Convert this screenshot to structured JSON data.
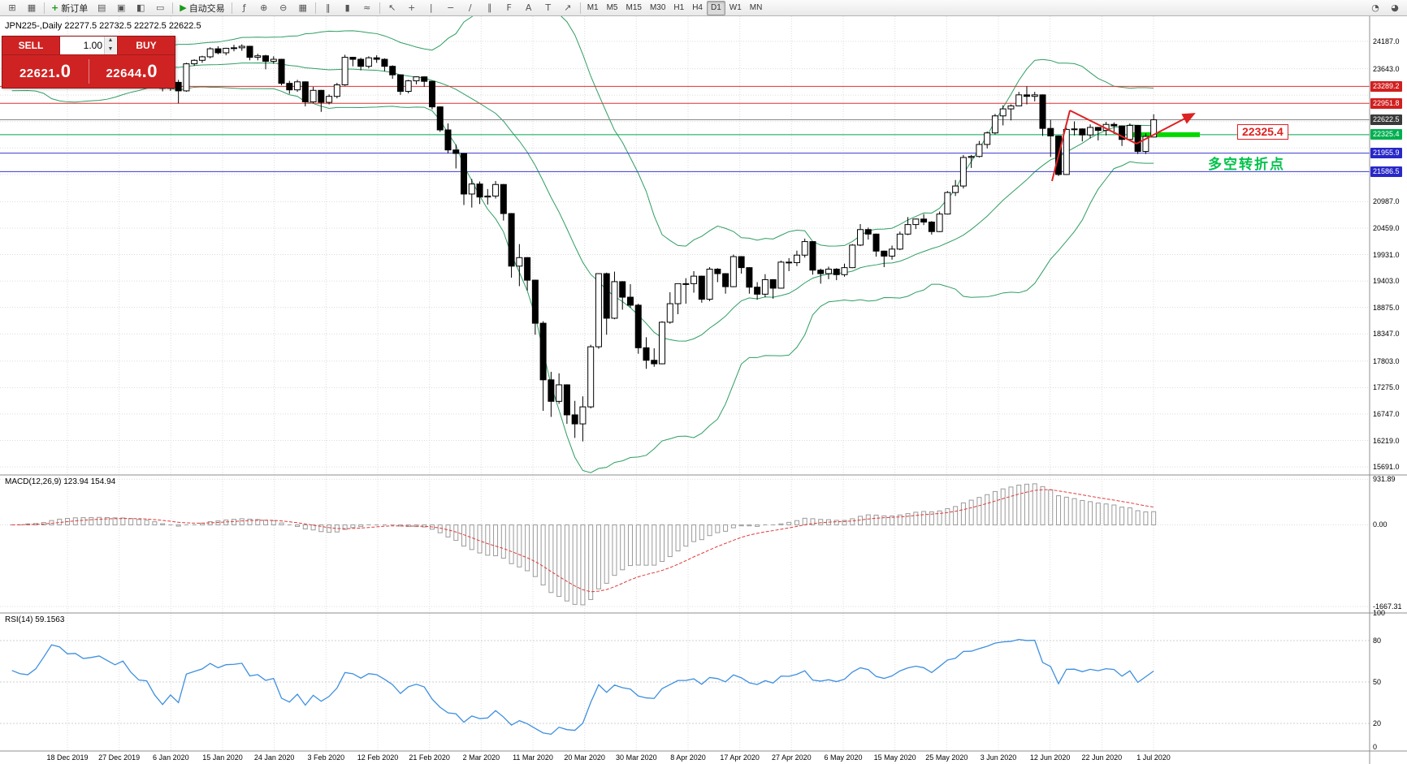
{
  "toolbar": {
    "icons_left": [
      {
        "name": "new-chart-icon",
        "glyph": "⊞"
      },
      {
        "name": "profiles-icon",
        "glyph": "▦"
      }
    ],
    "new_order": {
      "label": "新订单",
      "icon_glyph": "+",
      "icon_color": "#1a9a1a"
    },
    "icons_mid": [
      {
        "name": "market-watch-icon",
        "glyph": "▤"
      },
      {
        "name": "data-window-icon",
        "glyph": "▣"
      },
      {
        "name": "navigator-icon",
        "glyph": "◧"
      },
      {
        "name": "terminal-icon",
        "glyph": "▭"
      }
    ],
    "auto_trading": {
      "label": "自动交易",
      "icon_glyph": "▶",
      "icon_color": "#1a9a1a"
    },
    "icons_chart": [
      {
        "name": "indicators-icon",
        "glyph": "ƒ"
      },
      {
        "name": "zoom-in-icon",
        "glyph": "⊕"
      },
      {
        "name": "zoom-out-icon",
        "glyph": "⊖"
      },
      {
        "name": "tile-windows-icon",
        "glyph": "▦"
      }
    ],
    "icons_charttype": [
      {
        "name": "bar-chart-icon",
        "glyph": "‖"
      },
      {
        "name": "candlestick-icon",
        "glyph": "▮"
      },
      {
        "name": "line-chart-icon",
        "glyph": "≈"
      }
    ],
    "icons_tools": [
      {
        "name": "cursor-icon",
        "glyph": "↖"
      },
      {
        "name": "crosshair-icon",
        "glyph": "+"
      },
      {
        "name": "vertical-line-icon",
        "glyph": "|"
      },
      {
        "name": "horizontal-line-icon",
        "glyph": "−"
      },
      {
        "name": "trendline-icon",
        "glyph": "∕"
      },
      {
        "name": "channel-icon",
        "glyph": "∥"
      },
      {
        "name": "fibonacci-icon",
        "glyph": "F"
      },
      {
        "name": "text-icon",
        "glyph": "A"
      },
      {
        "name": "text-label-icon",
        "glyph": "T"
      },
      {
        "name": "arrows-icon",
        "glyph": "↗"
      }
    ],
    "timeframes": [
      "M1",
      "M5",
      "M15",
      "M30",
      "H1",
      "H4",
      "D1",
      "W1",
      "MN"
    ],
    "active_timeframe": "D1",
    "icons_right": [
      {
        "name": "help-icon",
        "glyph": "◔"
      },
      {
        "name": "community-icon",
        "glyph": "◕"
      }
    ]
  },
  "chart": {
    "symbol_ohlc": "JPN225-,Daily  22277.5 22732.5 22272.5 22622.5"
  },
  "trade_panel": {
    "sell_label": "SELL",
    "buy_label": "BUY",
    "volume": "1.00",
    "sell_price_main": "22621",
    "sell_price_dec": ".0",
    "buy_price_main": "22644",
    "buy_price_dec": ".0"
  },
  "indicators": {
    "macd_label": "MACD(12,26,9) 123.94 154.94",
    "rsi_label": "RSI(14) 59.1563"
  },
  "annotations": {
    "price_tag": "22325.4",
    "turning_point": "多空转折点"
  },
  "levels": [
    {
      "label": "23289.2",
      "value": 23289.2,
      "line_color": "#e03030",
      "tag_color": "#d02020"
    },
    {
      "label": "22951.8",
      "value": 22951.8,
      "line_color": "#e03030",
      "tag_color": "#d02020"
    },
    {
      "label": "22622.5",
      "value": 22622.5,
      "line_color": "#888888",
      "tag_color": "#3a3a3a"
    },
    {
      "label": "22325.4",
      "value": 22325.4,
      "line_color": "#00a84f",
      "tag_color": "#00b050",
      "thick": [
        1390,
        1477
      ],
      "thick_color": "#00d800"
    },
    {
      "label": "21955.9",
      "value": 21955.9,
      "line_color": "#3a3ad0",
      "tag_color": "#2828c8"
    },
    {
      "label": "21586.5",
      "value": 21586.5,
      "line_color": "#3a3ad0",
      "tag_color": "#2828c8"
    }
  ],
  "axes": {
    "y_labels": [
      "24187.0",
      "23643.0",
      "20987.0",
      "20459.0",
      "19931.0",
      "19403.0",
      "18875.0",
      "18347.0",
      "17803.0",
      "17275.0",
      "16747.0",
      "16219.0",
      "15691.0"
    ],
    "y_grid_extra": [
      23115,
      22587,
      22059,
      21531
    ],
    "macd_labels": [
      "931.89",
      "0.00",
      "-1667.31"
    ],
    "rsi_labels": [
      "100",
      "80",
      "50",
      "20",
      "0"
    ],
    "rsi_levels": [
      80,
      50,
      20
    ],
    "x_labels": [
      "18 Dec 2019",
      "27 Dec 2019",
      "6 Jan 2020",
      "15 Jan 2020",
      "24 Jan 2020",
      "3 Feb 2020",
      "12 Feb 2020",
      "21 Feb 2020",
      "2 Mar 2020",
      "11 Mar 2020",
      "20 Mar 2020",
      "30 Mar 2020",
      "8 Apr 2020",
      "17 Apr 2020",
      "27 Apr 2020",
      "6 May 2020",
      "15 May 2020",
      "25 May 2020",
      "3 Jun 2020",
      "12 Jun 2020",
      "22 Jun 2020",
      "1 Jul 2020"
    ]
  },
  "chart_data": {
    "type": "candlestick",
    "symbol": "JPN225-",
    "timeframe": "Daily",
    "overlays": [
      "Bollinger Bands (20,2)"
    ],
    "sub_indicators": [
      "MACD(12,26,9)",
      "RSI(14)"
    ],
    "y_range_main": [
      15530,
      24690
    ],
    "macd_range": [
      -1800,
      1020
    ],
    "pre_closes": [
      23300,
      23250,
      23290,
      23330,
      23380,
      23300,
      23270,
      23340,
      23290,
      23240,
      23310,
      23360,
      23300,
      23250,
      23200,
      23290,
      23350,
      23310,
      23280,
      23330
    ],
    "ohlc": [
      [
        23380,
        23460,
        23320,
        23430
      ],
      [
        23430,
        23480,
        23360,
        23400
      ],
      [
        23400,
        23440,
        23310,
        23390
      ],
      [
        23390,
        23480,
        23340,
        23460
      ],
      [
        23460,
        23660,
        23440,
        23640
      ],
      [
        23640,
        23980,
        23610,
        23950
      ],
      [
        23950,
        24050,
        23880,
        23930
      ],
      [
        23930,
        23970,
        23820,
        23860
      ],
      [
        23860,
        23920,
        23800,
        23870
      ],
      [
        23870,
        23900,
        23790,
        23820
      ],
      [
        23820,
        23880,
        23780,
        23840
      ],
      [
        23840,
        23890,
        23800,
        23870
      ],
      [
        23870,
        23900,
        23810,
        23830
      ],
      [
        23830,
        23860,
        23750,
        23790
      ],
      [
        23790,
        23870,
        23760,
        23850
      ],
      [
        23850,
        23870,
        23700,
        23740
      ],
      [
        23740,
        23770,
        23610,
        23650
      ],
      [
        23650,
        23700,
        23560,
        23640
      ],
      [
        23640,
        23660,
        23380,
        23440
      ],
      [
        23440,
        23470,
        23190,
        23250
      ],
      [
        23250,
        23390,
        23200,
        23370
      ],
      [
        23370,
        23420,
        22950,
        23200
      ],
      [
        23200,
        23760,
        23180,
        23740
      ],
      [
        23740,
        23830,
        23700,
        23810
      ],
      [
        23810,
        23900,
        23760,
        23880
      ],
      [
        23880,
        24070,
        23850,
        24040
      ],
      [
        24040,
        24090,
        23930,
        23960
      ],
      [
        23960,
        24060,
        23910,
        24050
      ],
      [
        24050,
        24120,
        23990,
        24060
      ],
      [
        24060,
        24130,
        24000,
        24090
      ],
      [
        24090,
        24100,
        23810,
        23870
      ],
      [
        23870,
        23940,
        23810,
        23900
      ],
      [
        23900,
        23920,
        23630,
        23790
      ],
      [
        23790,
        23890,
        23740,
        23830
      ],
      [
        23830,
        23840,
        23310,
        23350
      ],
      [
        23350,
        23400,
        23140,
        23220
      ],
      [
        23220,
        23420,
        23180,
        23380
      ],
      [
        23380,
        23390,
        22890,
        22980
      ],
      [
        22980,
        23280,
        22950,
        23210
      ],
      [
        23210,
        23220,
        22780,
        22970
      ],
      [
        22970,
        23130,
        22930,
        23090
      ],
      [
        23090,
        23360,
        23050,
        23320
      ],
      [
        23320,
        23920,
        23300,
        23870
      ],
      [
        23870,
        23880,
        23690,
        23830
      ],
      [
        23830,
        23860,
        23610,
        23690
      ],
      [
        23690,
        23890,
        23650,
        23860
      ],
      [
        23860,
        23910,
        23760,
        23830
      ],
      [
        23830,
        23850,
        23590,
        23690
      ],
      [
        23690,
        23710,
        23440,
        23520
      ],
      [
        23520,
        23530,
        23120,
        23190
      ],
      [
        23190,
        23420,
        23150,
        23400
      ],
      [
        23400,
        23490,
        23330,
        23480
      ],
      [
        23480,
        23490,
        23280,
        23390
      ],
      [
        23390,
        23400,
        22830,
        22880
      ],
      [
        22880,
        22890,
        22380,
        22420
      ],
      [
        22420,
        22550,
        21950,
        22020
      ],
      [
        22020,
        22130,
        21650,
        21950
      ],
      [
        21950,
        21960,
        20920,
        21140
      ],
      [
        21140,
        21440,
        20870,
        21340
      ],
      [
        21340,
        21390,
        20940,
        21080
      ],
      [
        21080,
        21240,
        20930,
        21100
      ],
      [
        21100,
        21400,
        21050,
        21330
      ],
      [
        21330,
        21340,
        20610,
        20750
      ],
      [
        20750,
        20760,
        19470,
        19700
      ],
      [
        19700,
        20140,
        19300,
        19870
      ],
      [
        19870,
        19880,
        19210,
        19420
      ],
      [
        19420,
        19430,
        18330,
        18560
      ],
      [
        18560,
        18600,
        16810,
        17430
      ],
      [
        17430,
        17590,
        16690,
        17000
      ],
      [
        17000,
        17560,
        16950,
        17330
      ],
      [
        17330,
        17340,
        16550,
        16730
      ],
      [
        16730,
        17010,
        16270,
        16550
      ],
      [
        16550,
        17100,
        16200,
        16890
      ],
      [
        16890,
        18130,
        16860,
        18090
      ],
      [
        18090,
        19560,
        18050,
        19550
      ],
      [
        19550,
        19570,
        18330,
        18660
      ],
      [
        18660,
        19590,
        18640,
        19390
      ],
      [
        19390,
        19400,
        18830,
        19080
      ],
      [
        19080,
        19340,
        18870,
        18920
      ],
      [
        18920,
        18950,
        17950,
        18070
      ],
      [
        18070,
        18280,
        17650,
        17820
      ],
      [
        17820,
        18060,
        17690,
        17750
      ],
      [
        17750,
        18600,
        17740,
        18580
      ],
      [
        18580,
        19180,
        18550,
        18950
      ],
      [
        18950,
        19350,
        18740,
        19350
      ],
      [
        19350,
        19460,
        18950,
        19350
      ],
      [
        19350,
        19600,
        19170,
        19500
      ],
      [
        19500,
        19510,
        18970,
        19040
      ],
      [
        19040,
        19680,
        19000,
        19640
      ],
      [
        19640,
        19660,
        19380,
        19550
      ],
      [
        19550,
        19560,
        19150,
        19290
      ],
      [
        19290,
        19930,
        19280,
        19890
      ],
      [
        19890,
        19900,
        19550,
        19670
      ],
      [
        19670,
        19680,
        19150,
        19280
      ],
      [
        19280,
        19380,
        19030,
        19140
      ],
      [
        19140,
        19540,
        19080,
        19430
      ],
      [
        19430,
        19440,
        19050,
        19260
      ],
      [
        19260,
        19810,
        19250,
        19780
      ],
      [
        19780,
        19860,
        19600,
        19770
      ],
      [
        19770,
        20010,
        19700,
        19920
      ],
      [
        19920,
        20250,
        19870,
        20190
      ],
      [
        20190,
        20200,
        19530,
        19620
      ],
      [
        19620,
        19650,
        19350,
        19550
      ],
      [
        19550,
        19690,
        19440,
        19640
      ],
      [
        19640,
        19660,
        19420,
        19530
      ],
      [
        19530,
        19750,
        19490,
        19670
      ],
      [
        19670,
        20140,
        19660,
        20120
      ],
      [
        20120,
        20540,
        20100,
        20430
      ],
      [
        20430,
        20470,
        20230,
        20340
      ],
      [
        20340,
        20350,
        19890,
        20000
      ],
      [
        20000,
        20010,
        19680,
        19900
      ],
      [
        19900,
        20110,
        19830,
        20040
      ],
      [
        20040,
        20390,
        20020,
        20340
      ],
      [
        20340,
        20680,
        20320,
        20530
      ],
      [
        20530,
        20650,
        20440,
        20640
      ],
      [
        20640,
        20740,
        20520,
        20580
      ],
      [
        20580,
        20600,
        20330,
        20390
      ],
      [
        20390,
        20790,
        20380,
        20740
      ],
      [
        20740,
        21200,
        20730,
        21170
      ],
      [
        21170,
        21420,
        21100,
        21300
      ],
      [
        21300,
        21920,
        21250,
        21870
      ],
      [
        21870,
        21920,
        21660,
        21890
      ],
      [
        21890,
        22200,
        21870,
        22130
      ],
      [
        22130,
        22390,
        22050,
        22360
      ],
      [
        22360,
        22740,
        22330,
        22700
      ],
      [
        22700,
        22910,
        22510,
        22840
      ],
      [
        22840,
        22930,
        22610,
        22900
      ],
      [
        22900,
        23180,
        22890,
        23120
      ],
      [
        23120,
        23290,
        22930,
        23090
      ],
      [
        23090,
        23180,
        22990,
        23120
      ],
      [
        23120,
        23130,
        22300,
        22450
      ],
      [
        22450,
        22620,
        21880,
        22300
      ],
      [
        22300,
        22310,
        21500,
        21530
      ],
      [
        21530,
        22460,
        21520,
        22430
      ],
      [
        22430,
        22590,
        22310,
        22440
      ],
      [
        22440,
        22450,
        22190,
        22320
      ],
      [
        22320,
        22530,
        22250,
        22470
      ],
      [
        22470,
        22480,
        22210,
        22410
      ],
      [
        22410,
        22580,
        22310,
        22530
      ],
      [
        22530,
        22570,
        22340,
        22500
      ],
      [
        22500,
        22510,
        22100,
        22230
      ],
      [
        22230,
        22550,
        22200,
        22510
      ],
      [
        22510,
        22520,
        21940,
        21990
      ],
      [
        21990,
        22350,
        21940,
        22290
      ],
      [
        22277.5,
        22732.5,
        22272.5,
        22622.5
      ]
    ],
    "trend_lines": [
      [
        1295,
        223,
        1317,
        136
      ],
      [
        1317,
        136,
        1399,
        177
      ],
      [
        1399,
        177,
        1470,
        140
      ]
    ],
    "trend_color": "#dd2222"
  }
}
